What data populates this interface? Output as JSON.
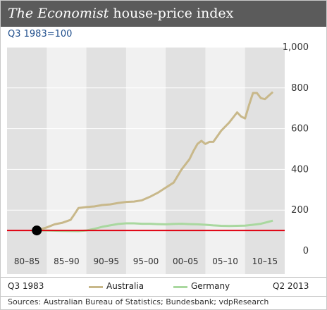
{
  "header": {
    "title_italic": "The Economist",
    "title_rest": " house-price index",
    "subtitle": "Q3 1983=100"
  },
  "legend": {
    "start_label": "Q3 1983",
    "end_label": "Q2 2013",
    "items": [
      {
        "name": "Australia",
        "color": "#c8b88a"
      },
      {
        "name": "Germany",
        "color": "#a9d89f"
      }
    ]
  },
  "source": "Sources: Australian Bureau of Statistics; Bundesbank; vdpResearch",
  "chart_data": {
    "type": "line",
    "title": "The Economist house-price index",
    "subtitle": "Q3 1983=100",
    "x_categories": [
      "80–85",
      "85–90",
      "90–95",
      "95–00",
      "00–05",
      "05–10",
      "10–15"
    ],
    "xlim": [
      1980,
      2015
    ],
    "ylim": [
      0,
      1000
    ],
    "y_ticks": [
      0,
      200,
      400,
      600,
      800,
      1000
    ],
    "y_tick_labels": [
      "0",
      "200",
      "400",
      "600",
      "800",
      "1,000"
    ],
    "reference_line": {
      "y": 100,
      "color": "#e0000f"
    },
    "start_marker": {
      "x": 1983.75,
      "y": 100
    },
    "grid": true,
    "series": [
      {
        "name": "Australia",
        "color": "#c8b88a",
        "x": [
          1983.75,
          1985,
          1986,
          1987,
          1988,
          1988.5,
          1989,
          1990,
          1991,
          1992,
          1993,
          1994,
          1995,
          1996,
          1997,
          1998,
          1999,
          2000,
          2001,
          2002,
          2003,
          2003.5,
          2004,
          2004.5,
          2005,
          2005.5,
          2006,
          2007,
          2008,
          2009,
          2009.5,
          2010,
          2010.5,
          2011,
          2011.5,
          2012,
          2012.5,
          2013.5
        ],
        "y": [
          100,
          115,
          130,
          138,
          152,
          180,
          210,
          215,
          218,
          225,
          228,
          235,
          240,
          242,
          248,
          265,
          285,
          310,
          335,
          400,
          450,
          490,
          525,
          540,
          525,
          535,
          535,
          590,
          630,
          680,
          660,
          650,
          715,
          775,
          775,
          750,
          745,
          780
        ]
      },
      {
        "name": "Germany",
        "color": "#a9d89f",
        "x": [
          1983.75,
          1985,
          1987,
          1989,
          1990,
          1991,
          1992,
          1993,
          1994,
          1995,
          1996,
          1997,
          1998,
          1999,
          2000,
          2001,
          2002,
          2003,
          2004,
          2005,
          2006,
          2007,
          2008,
          2009,
          2010,
          2011,
          2012,
          2013.5
        ],
        "y": [
          100,
          100,
          98,
          97,
          100,
          108,
          118,
          125,
          132,
          135,
          135,
          133,
          133,
          131,
          130,
          132,
          133,
          131,
          130,
          128,
          125,
          123,
          122,
          123,
          124,
          128,
          133,
          148
        ]
      }
    ]
  }
}
